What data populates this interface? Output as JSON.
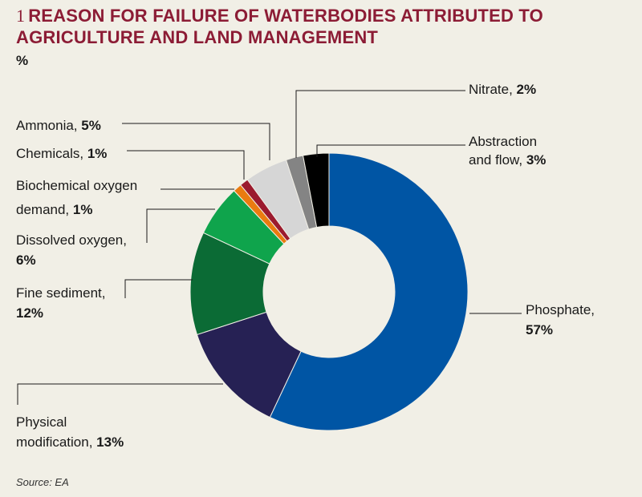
{
  "header": {
    "number": "1",
    "title": "REASON FOR FAILURE OF WATERBODIES ATTRIBUTED TO AGRICULTURE AND LAND MANAGEMENT",
    "unit": "%"
  },
  "source": "Source: EA",
  "chart_data": {
    "type": "pie",
    "donut": true,
    "unit": "%",
    "title": "REASON FOR FAILURE OF WATERBODIES ATTRIBUTED TO AGRICULTURE AND LAND MANAGEMENT",
    "legend": "none",
    "slices": [
      {
        "name": "Phosphate",
        "value": 57,
        "color": "#0055a4",
        "label_lines": [
          [
            "Phosphate,",
            ""
          ],
          [
            "",
            "57%"
          ]
        ]
      },
      {
        "name": "Physical modification",
        "value": 13,
        "color": "#262154",
        "label_lines": [
          [
            "Physical",
            ""
          ],
          [
            "modification, ",
            "13%"
          ]
        ]
      },
      {
        "name": "Fine sediment",
        "value": 12,
        "color": "#0b6b35",
        "label_lines": [
          [
            "Fine sediment,",
            ""
          ],
          [
            "",
            "12%"
          ]
        ]
      },
      {
        "name": "Dissolved oxygen",
        "value": 6,
        "color": "#0fa44c",
        "label_lines": [
          [
            "Dissolved oxygen,",
            ""
          ],
          [
            "",
            "6%"
          ]
        ]
      },
      {
        "name": "Biochemical oxygen demand",
        "value": 1,
        "color": "#ea7b10",
        "label_lines": [
          [
            "Biochemical oxygen",
            ""
          ],
          [
            "demand, ",
            "1%"
          ]
        ]
      },
      {
        "name": "Chemicals",
        "value": 1,
        "color": "#9b1a2e",
        "label_lines": [
          [
            "Chemicals, ",
            "1%"
          ]
        ]
      },
      {
        "name": "Ammonia",
        "value": 5,
        "color": "#d6d6d6",
        "label_lines": [
          [
            "Ammonia, ",
            "5%"
          ]
        ]
      },
      {
        "name": "Nitrate",
        "value": 2,
        "color": "#848484",
        "label_lines": [
          [
            "Nitrate, ",
            "2%"
          ]
        ]
      },
      {
        "name": "Abstraction and flow",
        "value": 3,
        "color": "#000000",
        "label_lines": [
          [
            "Abstraction",
            ""
          ],
          [
            "and flow, ",
            "3%"
          ]
        ]
      }
    ]
  }
}
